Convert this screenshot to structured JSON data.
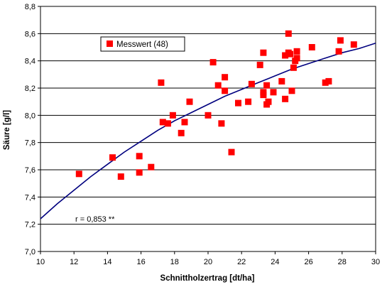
{
  "chart_data": {
    "type": "scatter",
    "xlabel": "Schnittholzertrag [dt/ha]",
    "ylabel": "Säure [g/l]",
    "xlim": [
      10,
      30
    ],
    "ylim": [
      7.0,
      8.8
    ],
    "x_ticks": [
      "10",
      "12",
      "14",
      "16",
      "18",
      "20",
      "22",
      "24",
      "26",
      "28",
      "30"
    ],
    "y_ticks": [
      "7,0",
      "7,2",
      "7,4",
      "7,6",
      "7,8",
      "8,0",
      "8,2",
      "8,4",
      "8,6",
      "8,8"
    ],
    "grid": "horizontal",
    "legend_position": "top-left",
    "colors": {
      "marker": "#ff0000",
      "trend": "#00007f",
      "grid": "#000000"
    },
    "annotation": "r = 0,853 **",
    "series": [
      {
        "name": "Messwert (48)",
        "points": [
          [
            12.3,
            7.57
          ],
          [
            14.3,
            7.69
          ],
          [
            14.8,
            7.55
          ],
          [
            15.9,
            7.58
          ],
          [
            15.9,
            7.7
          ],
          [
            16.6,
            7.62
          ],
          [
            17.2,
            8.24
          ],
          [
            17.3,
            7.95
          ],
          [
            17.6,
            7.94
          ],
          [
            17.9,
            8.0
          ],
          [
            18.4,
            7.87
          ],
          [
            18.6,
            7.95
          ],
          [
            18.9,
            8.1
          ],
          [
            20.0,
            8.0
          ],
          [
            20.3,
            8.39
          ],
          [
            20.6,
            8.22
          ],
          [
            20.8,
            7.94
          ],
          [
            21.0,
            8.28
          ],
          [
            21.0,
            8.18
          ],
          [
            21.4,
            7.73
          ],
          [
            21.8,
            8.09
          ],
          [
            22.4,
            8.1
          ],
          [
            22.6,
            8.23
          ],
          [
            23.1,
            8.37
          ],
          [
            23.3,
            8.17
          ],
          [
            23.3,
            8.15
          ],
          [
            23.3,
            8.46
          ],
          [
            23.5,
            8.22
          ],
          [
            23.5,
            8.08
          ],
          [
            23.6,
            8.1
          ],
          [
            23.9,
            8.17
          ],
          [
            24.4,
            8.25
          ],
          [
            24.6,
            8.44
          ],
          [
            24.6,
            8.12
          ],
          [
            24.8,
            8.6
          ],
          [
            24.8,
            8.46
          ],
          [
            24.9,
            8.45
          ],
          [
            25.0,
            8.18
          ],
          [
            25.1,
            8.35
          ],
          [
            25.3,
            8.47
          ],
          [
            25.3,
            8.42
          ],
          [
            26.2,
            8.5
          ],
          [
            27.0,
            8.24
          ],
          [
            27.2,
            8.25
          ],
          [
            27.8,
            8.47
          ],
          [
            27.9,
            8.55
          ],
          [
            28.7,
            8.52
          ],
          [
            25.2,
            8.4
          ]
        ]
      }
    ],
    "trendline": {
      "x": [
        10,
        11,
        12,
        13,
        14,
        15,
        16,
        17,
        18,
        19,
        20,
        21,
        22,
        23,
        24,
        25,
        26,
        27,
        28,
        29,
        30
      ],
      "y": [
        7.24,
        7.35,
        7.45,
        7.55,
        7.64,
        7.73,
        7.81,
        7.89,
        7.96,
        8.02,
        8.08,
        8.14,
        8.19,
        8.24,
        8.29,
        8.34,
        8.38,
        8.42,
        8.46,
        8.49,
        8.53
      ]
    }
  }
}
